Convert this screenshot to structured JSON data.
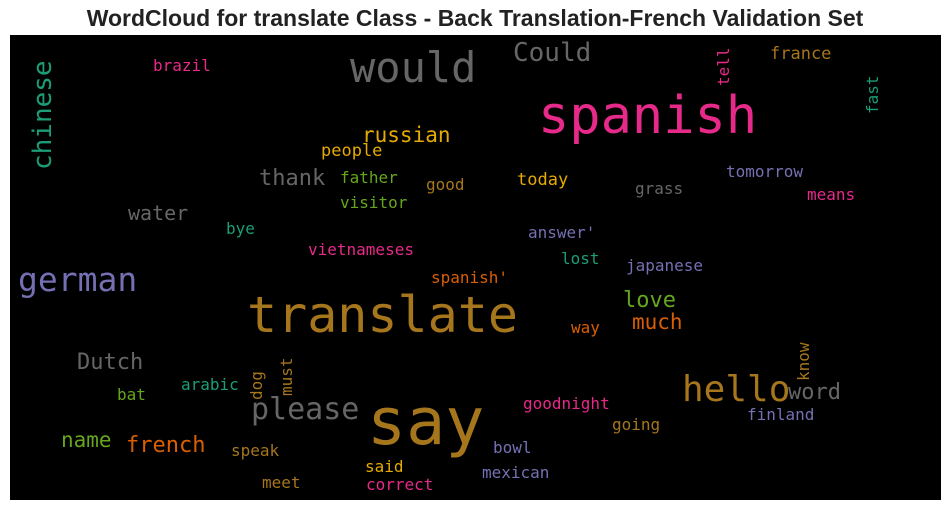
{
  "title": "WordCloud for translate Class - Back Translation-French Validation Set",
  "palette": {
    "gray": "#666666",
    "pink": "#e7298a",
    "teal": "#1b9e77",
    "orange": "#d95f02",
    "purple": "#7570b3",
    "gold": "#e6ab02",
    "brown": "#a6761d",
    "green": "#66a61e"
  },
  "words": [
    {
      "text": "translate",
      "color": "#a6761d"
    },
    {
      "text": "say",
      "color": "#a6761d"
    },
    {
      "text": "spanish",
      "color": "#e7298a"
    },
    {
      "text": "would",
      "color": "#666666"
    },
    {
      "text": "hello",
      "color": "#a6761d"
    },
    {
      "text": "german",
      "color": "#7570b3"
    },
    {
      "text": "please",
      "color": "#666666"
    },
    {
      "text": "chinese",
      "color": "#1b9e77"
    },
    {
      "text": "Could",
      "color": "#666666"
    },
    {
      "text": "russian",
      "color": "#e6ab02"
    },
    {
      "text": "french",
      "color": "#d95f02"
    },
    {
      "text": "word",
      "color": "#666666"
    },
    {
      "text": "Dutch",
      "color": "#666666"
    },
    {
      "text": "love",
      "color": "#66a61e"
    },
    {
      "text": "much",
      "color": "#d95f02"
    },
    {
      "text": "thank",
      "color": "#666666"
    },
    {
      "text": "name",
      "color": "#66a61e"
    },
    {
      "text": "water",
      "color": "#666666"
    },
    {
      "text": "brazil",
      "color": "#e7298a"
    },
    {
      "text": "france",
      "color": "#a6761d"
    },
    {
      "text": "tell",
      "color": "#e7298a"
    },
    {
      "text": "fast",
      "color": "#1b9e77"
    },
    {
      "text": "people",
      "color": "#e6ab02"
    },
    {
      "text": "father",
      "color": "#66a61e"
    },
    {
      "text": "good",
      "color": "#a6761d"
    },
    {
      "text": "today",
      "color": "#e6ab02"
    },
    {
      "text": "grass",
      "color": "#666666"
    },
    {
      "text": "tomorrow",
      "color": "#7570b3"
    },
    {
      "text": "means",
      "color": "#e7298a"
    },
    {
      "text": "visitor",
      "color": "#66a61e"
    },
    {
      "text": "bye",
      "color": "#1b9e77"
    },
    {
      "text": "vietnameses",
      "color": "#e7298a"
    },
    {
      "text": "answer'",
      "color": "#7570b3"
    },
    {
      "text": "lost",
      "color": "#1b9e77"
    },
    {
      "text": "japanese",
      "color": "#7570b3"
    },
    {
      "text": "spanish'",
      "color": "#d95f02"
    },
    {
      "text": "way",
      "color": "#d95f02"
    },
    {
      "text": "know",
      "color": "#a6761d"
    },
    {
      "text": "must",
      "color": "#a6761d"
    },
    {
      "text": "dog",
      "color": "#a6761d"
    },
    {
      "text": "arabic",
      "color": "#1b9e77"
    },
    {
      "text": "bat",
      "color": "#66a61e"
    },
    {
      "text": "goodnight",
      "color": "#e7298a"
    },
    {
      "text": "finland",
      "color": "#7570b3"
    },
    {
      "text": "going",
      "color": "#a6761d"
    },
    {
      "text": "bowl",
      "color": "#7570b3"
    },
    {
      "text": "speak",
      "color": "#a6761d"
    },
    {
      "text": "said",
      "color": "#e6ab02"
    },
    {
      "text": "mexican",
      "color": "#7570b3"
    },
    {
      "text": "meet",
      "color": "#a6761d"
    },
    {
      "text": "correct",
      "color": "#e7298a"
    }
  ]
}
